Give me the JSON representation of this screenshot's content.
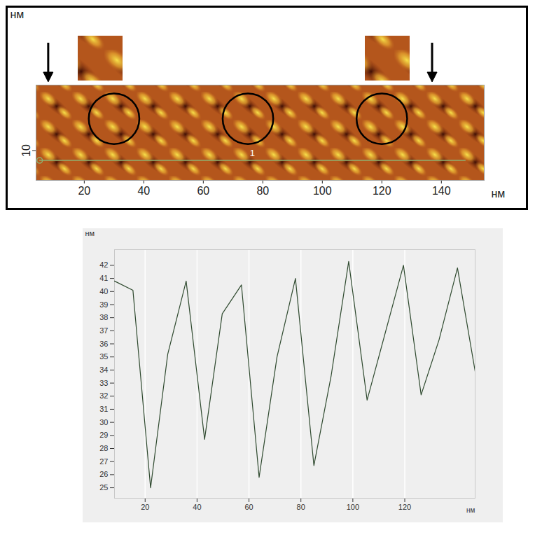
{
  "chart_data": [
    {
      "type": "image",
      "x_label": "нм",
      "y_label": "нм",
      "xlim": [
        3.8,
        154.4
      ],
      "xticks": [
        20,
        40,
        60,
        80,
        100,
        120,
        140
      ],
      "ylim": [
        0,
        32
      ],
      "yticks": [
        10
      ],
      "profile": {
        "label": "1",
        "x": [
          5,
          148
        ],
        "y": 6.7
      },
      "circles": {
        "x": [
          30,
          75,
          120
        ],
        "y": [
          20.7,
          20.7,
          20.7
        ],
        "r": 8.5
      },
      "arrows": {
        "x": [
          8,
          137
        ]
      }
    },
    {
      "type": "line",
      "x_label": "нм",
      "y_label": "нм",
      "color": "#2f4a2f",
      "x": [
        8.2,
        15.3,
        22.1,
        28.7,
        35.8,
        42.9,
        49.7,
        57.1,
        63.9,
        70.8,
        77.9,
        85.0,
        91.6,
        98.4,
        105.5,
        119.5,
        126.3,
        133.2,
        140.3,
        147.1
      ],
      "values": [
        40.8,
        40.1,
        25.0,
        35.2,
        40.8,
        28.7,
        38.3,
        40.5,
        25.8,
        35.0,
        41.0,
        26.7,
        33.5,
        42.3,
        31.7,
        42.0,
        32.1,
        36.3,
        41.8,
        33.9
      ],
      "xlim": [
        8.2,
        147.1
      ],
      "xticks": [
        20,
        40,
        60,
        80,
        100,
        120
      ],
      "ylim": [
        24.2,
        43.2
      ],
      "yticks": [
        25,
        26,
        27,
        28,
        29,
        30,
        31,
        32,
        33,
        34,
        35,
        36,
        37,
        38,
        39,
        40,
        41,
        42
      ],
      "grid": "x"
    }
  ]
}
